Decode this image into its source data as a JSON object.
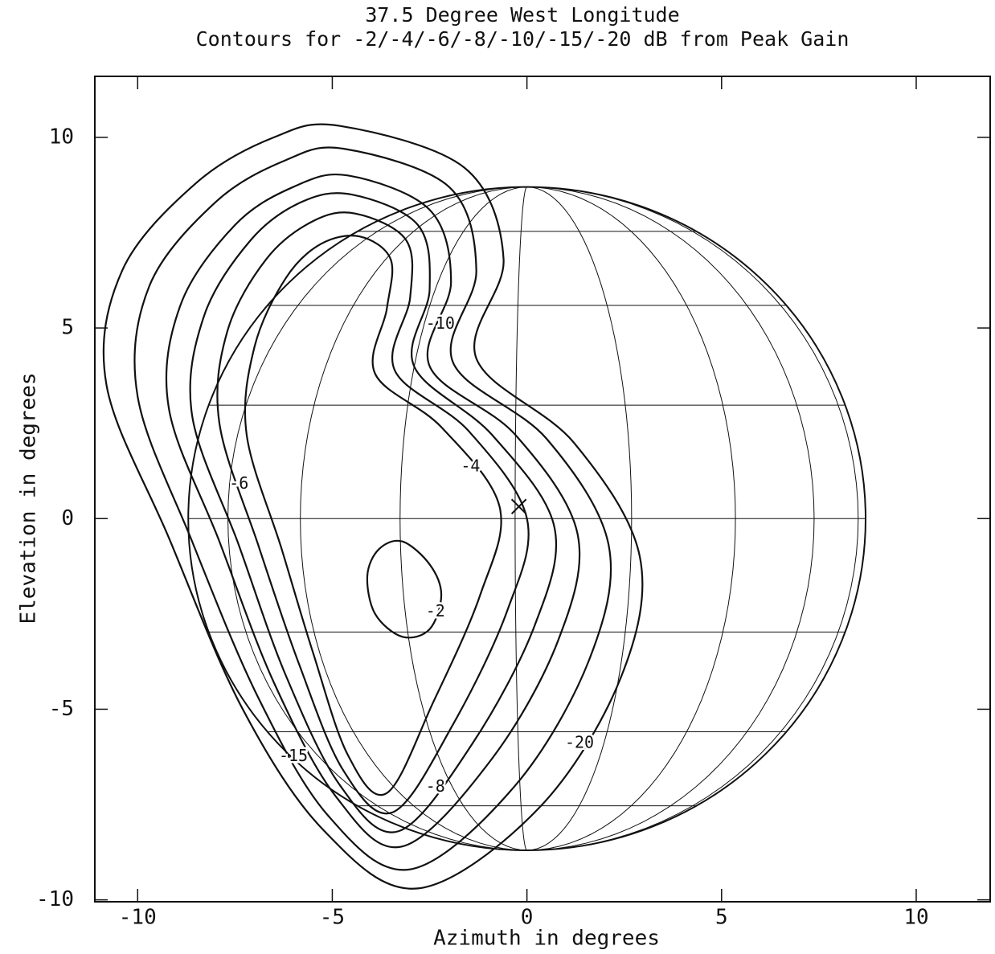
{
  "chart_data": {
    "type": "contour",
    "title": "37.5 Degree West Longitude",
    "subtitle": "Contours for -2/-4/-6/-8/-10/-15/-20 dB from Peak Gain",
    "x_label": "Azimuth in degrees",
    "y_label": "Elevation in degrees",
    "xlim": [
      -11.1,
      11.9
    ],
    "ylim": [
      -10.05,
      11.6
    ],
    "xticks": [
      -10,
      -5,
      0,
      5,
      10
    ],
    "yticks": [
      -10,
      -5,
      0,
      5,
      10
    ],
    "color": "#111111",
    "disk": {
      "x": 0,
      "y": 0,
      "r": 8.7
    },
    "series": [
      {
        "name": "-2",
        "x": [
          -3.2,
          -2.5,
          -2.2,
          -2.5,
          -3.2,
          -3.9,
          -4.1,
          -3.8
        ],
        "y": [
          -0.6,
          -1.2,
          -2.0,
          -2.9,
          -3.1,
          -2.5,
          -1.5,
          -0.8
        ]
      },
      {
        "name": "-4",
        "x": [
          -4.3,
          -3.5,
          -3.6,
          -3.9,
          -2.2,
          -0.7,
          -1.2,
          -2.4,
          -3.6,
          -4.6,
          -5.5,
          -6.3,
          -7.2,
          -7.0,
          -6.2,
          -5.3
        ],
        "y": [
          7.4,
          6.8,
          5.5,
          3.8,
          2.4,
          0.3,
          -2.0,
          -4.8,
          -7.2,
          -6.2,
          -3.5,
          -0.8,
          2.2,
          4.5,
          6.3,
          7.2
        ]
      },
      {
        "name": "-6",
        "x": [
          -4.4,
          -3.1,
          -3.0,
          -3.4,
          -1.5,
          0.0,
          -0.5,
          -1.9,
          -3.44,
          -4.72,
          -5.86,
          -6.9,
          -7.9,
          -7.7,
          -6.7,
          -5.5
        ],
        "y": [
          8.0,
          7.3,
          5.8,
          3.9,
          2.3,
          0.0,
          -2.4,
          -5.4,
          -7.7,
          -6.6,
          -3.8,
          -0.7,
          2.5,
          4.9,
          6.8,
          7.8
        ]
      },
      {
        "name": "-8",
        "x": [
          -4.5,
          -2.8,
          -2.5,
          -2.9,
          -0.9,
          0.7,
          0.2,
          -1.4,
          -3.3,
          -4.8,
          -6.2,
          -7.4,
          -8.6,
          -8.3,
          -7.1,
          -5.8
        ],
        "y": [
          8.5,
          7.7,
          6.0,
          4.0,
          2.2,
          -0.2,
          -2.8,
          -5.9,
          -8.2,
          -7.0,
          -4.1,
          -0.7,
          2.7,
          5.3,
          7.3,
          8.3
        ]
      },
      {
        "name": "-10",
        "x": [
          -4.6,
          -2.5,
          -1.95,
          -2.5,
          -0.3,
          1.3,
          0.8,
          -0.9,
          -3.2,
          -4.9,
          -6.5,
          -7.9,
          -9.2,
          -8.9,
          -7.5,
          -6.0
        ],
        "y": [
          9.0,
          8.1,
          6.2,
          4.0,
          2.2,
          -0.4,
          -3.2,
          -6.3,
          -8.6,
          -7.3,
          -4.3,
          -0.6,
          2.9,
          5.6,
          7.7,
          8.7
        ]
      },
      {
        "name": "-15",
        "x": [
          -4.7,
          -2.0,
          -1.3,
          -1.9,
          0.5,
          2.1,
          1.6,
          -0.3,
          -3.0,
          -5.1,
          -6.9,
          -8.6,
          -10.0,
          -9.7,
          -8.0,
          -6.2
        ],
        "y": [
          9.7,
          8.7,
          6.5,
          4.1,
          2.1,
          -0.7,
          -3.7,
          -7.0,
          -9.2,
          -7.8,
          -4.7,
          -0.6,
          3.2,
          6.1,
          8.3,
          9.4
        ]
      },
      {
        "name": "-20",
        "x": [
          -4.8,
          -1.6,
          -0.6,
          -1.3,
          1.2,
          2.9,
          2.4,
          0.3,
          -2.8,
          -5.2,
          -7.3,
          -9.2,
          -10.8,
          -10.4,
          -8.5,
          -6.5
        ],
        "y": [
          10.3,
          9.2,
          6.8,
          4.2,
          2.0,
          -1.0,
          -4.2,
          -7.6,
          -9.7,
          -8.2,
          -5.0,
          -0.5,
          3.5,
          6.5,
          8.8,
          10.0
        ]
      }
    ]
  }
}
